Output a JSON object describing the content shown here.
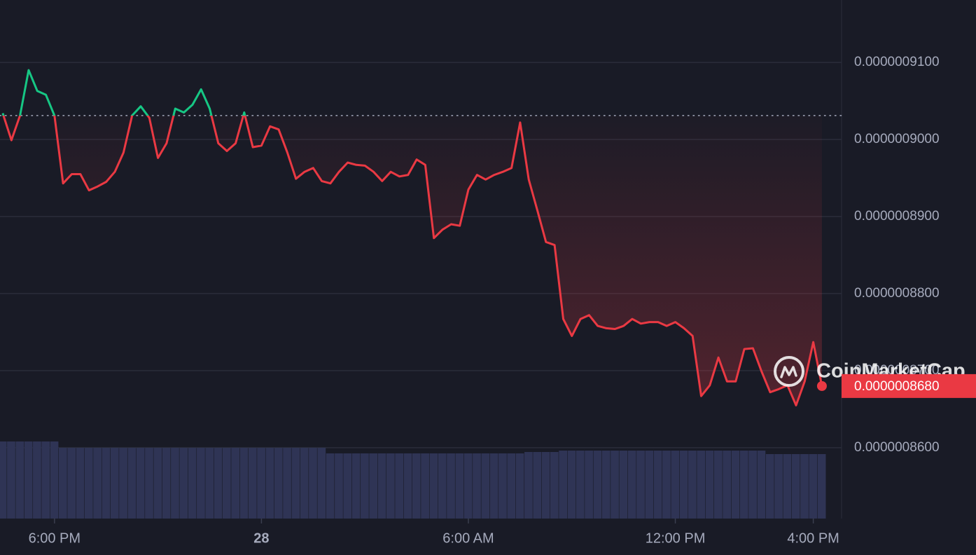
{
  "chart_data": {
    "type": "line",
    "x": [
      16.5,
      16.75,
      17,
      17.25,
      17.5,
      17.75,
      18,
      18.25,
      18.5,
      18.75,
      19,
      19.25,
      19.5,
      19.75,
      20,
      20.25,
      20.5,
      20.75,
      21,
      21.25,
      21.5,
      21.75,
      22,
      22.25,
      22.5,
      22.75,
      23,
      23.25,
      23.5,
      23.75,
      24,
      24.25,
      24.5,
      24.75,
      25,
      25.25,
      25.5,
      25.75,
      26,
      26.25,
      26.5,
      26.75,
      27,
      27.25,
      27.5,
      27.75,
      28,
      28.25,
      28.5,
      28.75,
      29,
      29.25,
      29.5,
      29.75,
      30,
      30.25,
      30.5,
      30.75,
      31,
      31.25,
      31.5,
      31.75,
      32,
      32.25,
      32.5,
      32.75,
      33,
      33.25,
      33.5,
      33.75,
      34,
      34.25,
      34.5,
      34.75,
      35,
      35.25,
      35.5,
      35.75,
      36,
      36.25,
      36.5,
      36.75,
      37,
      37.25,
      37.5,
      37.75,
      38,
      38.25,
      38.5,
      38.75,
      39,
      39.25,
      39.5,
      39.75,
      40,
      40.25
    ],
    "series": [
      {
        "color": "#ea3943",
        "up_color": "#16c784",
        "values": [
          9.034e-07,
          8.999e-07,
          9.031e-07,
          9.09e-07,
          9.063e-07,
          9.058e-07,
          9.031e-07,
          8.943e-07,
          8.955e-07,
          8.955e-07,
          8.934e-07,
          8.939e-07,
          8.945e-07,
          8.958e-07,
          8.983e-07,
          9.031e-07,
          9.043e-07,
          9.028e-07,
          8.976e-07,
          8.995e-07,
          9.04e-07,
          9.035e-07,
          9.045e-07,
          9.065e-07,
          9.04e-07,
          8.995e-07,
          8.985e-07,
          8.995e-07,
          9.035e-07,
          8.99e-07,
          8.992e-07,
          9.017e-07,
          9.013e-07,
          8.983e-07,
          8.949e-07,
          8.958e-07,
          8.963e-07,
          8.946e-07,
          8.943e-07,
          8.958e-07,
          8.97e-07,
          8.967e-07,
          8.966e-07,
          8.958e-07,
          8.946e-07,
          8.958e-07,
          8.952e-07,
          8.954e-07,
          8.974e-07,
          8.967e-07,
          8.872e-07,
          8.883e-07,
          8.89e-07,
          8.888e-07,
          8.935e-07,
          8.954e-07,
          8.948e-07,
          8.954e-07,
          8.958e-07,
          8.963e-07,
          9.022e-07,
          8.948e-07,
          8.908e-07,
          8.867e-07,
          8.863e-07,
          8.767e-07,
          8.745e-07,
          8.767e-07,
          8.772e-07,
          8.758e-07,
          8.755e-07,
          8.754e-07,
          8.758e-07,
          8.767e-07,
          8.761e-07,
          8.763e-07,
          8.763e-07,
          8.758e-07,
          8.763e-07,
          8.755e-07,
          8.745e-07,
          8.667e-07,
          8.681e-07,
          8.717e-07,
          8.686e-07,
          8.686e-07,
          8.728e-07,
          8.729e-07,
          8.699e-07,
          8.672e-07,
          8.676e-07,
          8.681e-07,
          8.655e-07,
          8.686e-07,
          8.737e-07,
          8.68e-07
        ]
      }
    ],
    "volume": {
      "color": "#2f3455",
      "values": [
        110,
        110,
        110,
        110,
        110,
        110,
        110,
        101,
        101,
        101,
        101,
        101,
        101,
        101,
        101,
        101,
        101,
        101,
        101,
        101,
        101,
        101,
        101,
        101,
        101,
        101,
        101,
        101,
        101,
        101,
        101,
        101,
        101,
        101,
        101,
        101,
        101,
        101,
        93,
        93,
        93,
        93,
        93,
        93,
        93,
        93,
        93,
        93,
        93,
        93,
        93,
        93,
        93,
        93,
        93,
        93,
        93,
        93,
        93,
        93,
        93,
        95,
        95,
        95,
        95,
        97,
        97,
        97,
        97,
        97,
        97,
        97,
        97,
        97,
        97,
        97,
        97,
        97,
        97,
        97,
        97,
        97,
        97,
        97,
        97,
        97,
        97,
        97,
        97,
        92,
        92,
        92,
        92,
        92,
        92,
        92
      ]
    },
    "reference_line": 9.031e-07,
    "price_label": {
      "value": 8.68e-07,
      "label": "0.0000008680",
      "color": "#ea3943"
    },
    "xlim": [
      16.42,
      40.82
    ],
    "ylim": [
      8.508e-07,
      9.181e-07
    ],
    "xticks": [
      {
        "value": 18,
        "label": "6:00 PM"
      },
      {
        "value": 24,
        "label": "28"
      },
      {
        "value": 30,
        "label": "6:00 AM"
      },
      {
        "value": 36,
        "label": "12:00 PM"
      },
      {
        "value": 40,
        "label": "4:00 PM"
      }
    ],
    "yticks": [
      {
        "value": 8.6e-07,
        "label": "0.0000008600"
      },
      {
        "value": 8.7e-07,
        "label": "0.0000008700"
      },
      {
        "value": 8.8e-07,
        "label": "0.0000008800"
      },
      {
        "value": 8.9e-07,
        "label": "0.0000008900"
      },
      {
        "value": 9e-07,
        "label": "0.0000009000"
      },
      {
        "value": 9.1e-07,
        "label": "0.0000009100"
      }
    ],
    "grid": true,
    "watermark": "CoinMarketCap"
  }
}
